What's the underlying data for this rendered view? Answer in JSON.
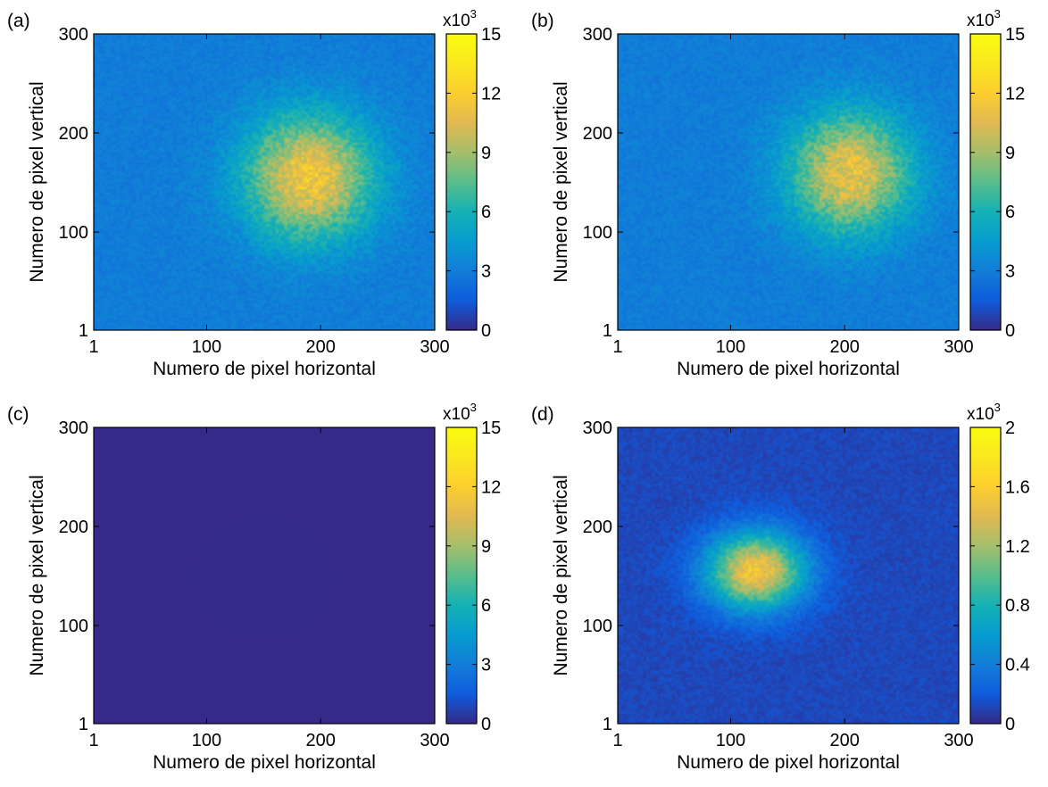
{
  "chart_data": [
    {
      "type": "heatmap",
      "panel_label": "(a)",
      "xlabel": "Numero de pixel horizontal",
      "ylabel": "Numero de pixel vertical",
      "xlim": [
        1,
        300
      ],
      "ylim": [
        1,
        300
      ],
      "xticks": [
        "1",
        "100",
        "200",
        "300"
      ],
      "yticks": [
        "1",
        "100",
        "200",
        "300"
      ],
      "colorbar": {
        "range": [
          0,
          15
        ],
        "ticks": [
          "0",
          "3",
          "6",
          "9",
          "12",
          "15"
        ],
        "exponent_prefix": "x10",
        "exponent": "3",
        "colormap": "parula"
      },
      "blob": {
        "center": [
          190,
          155
        ],
        "peak": 11.5,
        "spread": [
          55,
          62
        ],
        "background": 3.0,
        "noise": 1.2
      }
    },
    {
      "type": "heatmap",
      "panel_label": "(b)",
      "xlabel": "Numero de pixel horizontal",
      "ylabel": "Numero de pixel vertical",
      "xlim": [
        1,
        300
      ],
      "ylim": [
        1,
        300
      ],
      "xticks": [
        "1",
        "100",
        "200",
        "300"
      ],
      "yticks": [
        "1",
        "100",
        "200",
        "300"
      ],
      "colorbar": {
        "range": [
          0,
          15
        ],
        "ticks": [
          "0",
          "3",
          "6",
          "9",
          "12",
          "15"
        ],
        "exponent_prefix": "x10",
        "exponent": "3",
        "colormap": "parula"
      },
      "blob": {
        "center": [
          205,
          160
        ],
        "peak": 11.0,
        "spread": [
          52,
          60
        ],
        "background": 3.0,
        "noise": 1.2
      }
    },
    {
      "type": "heatmap",
      "panel_label": "(c)",
      "xlabel": "Numero de pixel horizontal",
      "ylabel": "Numero de pixel vertical",
      "xlim": [
        1,
        300
      ],
      "ylim": [
        1,
        300
      ],
      "xticks": [
        "1",
        "100",
        "200",
        "300"
      ],
      "yticks": [
        "1",
        "100",
        "200",
        "300"
      ],
      "colorbar": {
        "range": [
          0,
          15
        ],
        "ticks": [
          "0",
          "3",
          "6",
          "9",
          "12",
          "15"
        ],
        "exponent_prefix": "x10",
        "exponent": "3",
        "colormap": "parula"
      },
      "blob": {
        "center": [
          150,
          150
        ],
        "peak": 0.05,
        "spread": [
          60,
          60
        ],
        "background": 0.0,
        "noise": 0.0
      }
    },
    {
      "type": "heatmap",
      "panel_label": "(d)",
      "xlabel": "Numero de pixel horizontal",
      "ylabel": "Numero de pixel vertical",
      "xlim": [
        1,
        300
      ],
      "ylim": [
        1,
        300
      ],
      "xticks": [
        "1",
        "100",
        "200",
        "300"
      ],
      "yticks": [
        "1",
        "100",
        "200",
        "300"
      ],
      "colorbar": {
        "range": [
          0,
          2
        ],
        "ticks": [
          "0",
          "0.4",
          "0.8",
          "1.2",
          "1.6",
          "2"
        ],
        "exponent_prefix": "x10",
        "exponent": "3",
        "colormap": "parula"
      },
      "blob": {
        "center": [
          122,
          155
        ],
        "peak": 1.55,
        "spread": [
          42,
          38
        ],
        "background": 0.12,
        "noise": 0.12
      }
    }
  ]
}
